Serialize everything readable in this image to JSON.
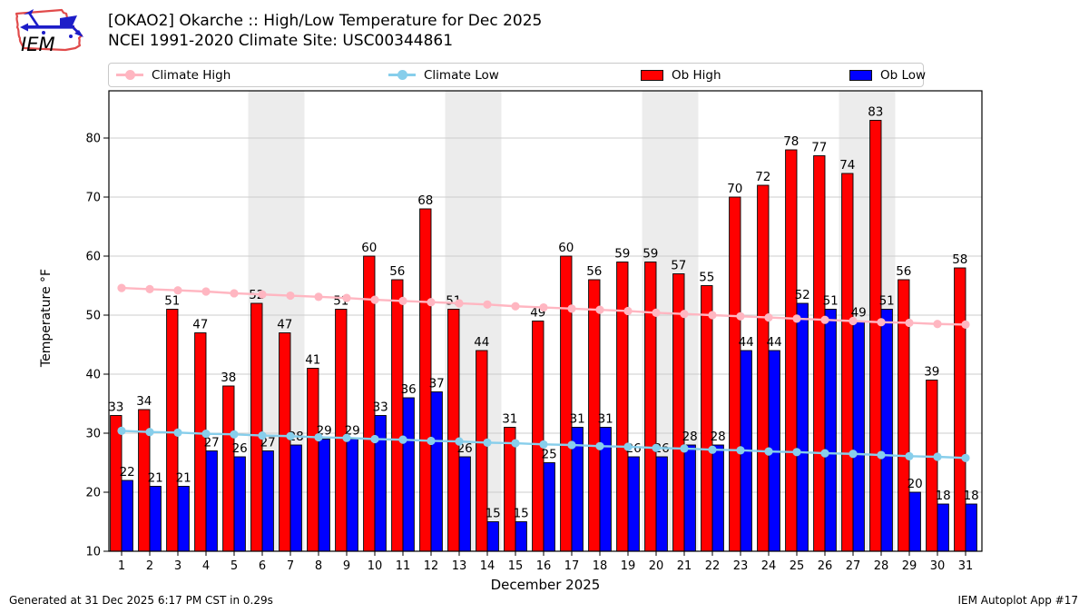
{
  "header": {
    "logo_text": "IEM",
    "title_line1": "[OKAO2] Okarche :: High/Low Temperature for Dec 2025",
    "title_line2": "NCEI 1991-2020 Climate Site: USC00344861"
  },
  "legend": {
    "items": [
      {
        "label": "Climate High",
        "type": "line",
        "color": "#ffb6c1"
      },
      {
        "label": "Climate Low",
        "type": "line",
        "color": "#87ceeb"
      },
      {
        "label": "Ob High",
        "type": "patch",
        "color": "#ff0000"
      },
      {
        "label": "Ob Low",
        "type": "patch",
        "color": "#0000ff"
      }
    ]
  },
  "chart_data": {
    "type": "bar",
    "title": "[OKAO2] Okarche :: High/Low Temperature for Dec 2025",
    "subtitle": "NCEI 1991-2020 Climate Site: USC00344861",
    "xlabel": "December 2025",
    "ylabel": "Temperature °F",
    "x": [
      1,
      2,
      3,
      4,
      5,
      6,
      7,
      8,
      9,
      10,
      11,
      12,
      13,
      14,
      15,
      16,
      17,
      18,
      19,
      20,
      21,
      22,
      23,
      24,
      25,
      26,
      27,
      28,
      29,
      30,
      31
    ],
    "yticks": [
      10,
      20,
      30,
      40,
      50,
      60,
      70,
      80
    ],
    "ylim": [
      10,
      88
    ],
    "grid": "horizontal",
    "legend_position": "top",
    "weekend_bands": [
      [
        5.5,
        7.5
      ],
      [
        12.5,
        14.5
      ],
      [
        19.5,
        21.5
      ],
      [
        26.5,
        28.5
      ]
    ],
    "style": {
      "band": "#ececec",
      "gridline": "#cccccc"
    },
    "series": [
      {
        "name": "Climate High",
        "type": "line",
        "color": "#ffb6c1",
        "values": [
          54.6,
          54.4,
          54.2,
          54.0,
          53.7,
          53.5,
          53.3,
          53.1,
          52.9,
          52.6,
          52.4,
          52.2,
          52.0,
          51.8,
          51.5,
          51.3,
          51.1,
          50.9,
          50.7,
          50.4,
          50.2,
          50.0,
          49.8,
          49.6,
          49.4,
          49.2,
          49.0,
          48.8,
          48.7,
          48.5,
          48.4
        ]
      },
      {
        "name": "Climate Low",
        "type": "line",
        "color": "#87ceeb",
        "values": [
          30.4,
          30.2,
          30.1,
          29.9,
          29.8,
          29.6,
          29.5,
          29.3,
          29.2,
          29.0,
          28.9,
          28.7,
          28.6,
          28.4,
          28.3,
          28.1,
          28.0,
          27.8,
          27.7,
          27.5,
          27.4,
          27.2,
          27.1,
          26.9,
          26.8,
          26.6,
          26.5,
          26.3,
          26.1,
          26.0,
          25.8
        ]
      },
      {
        "name": "Ob High",
        "type": "bar",
        "color": "#ff0000",
        "values": [
          33,
          34,
          51,
          47,
          38,
          52,
          47,
          41,
          51,
          60,
          56,
          68,
          51,
          44,
          31,
          49,
          60,
          56,
          59,
          59,
          57,
          55,
          70,
          72,
          78,
          77,
          74,
          83,
          56,
          39,
          58
        ]
      },
      {
        "name": "Ob Low",
        "type": "bar",
        "color": "#0000ff",
        "values": [
          22,
          21,
          21,
          27,
          26,
          27,
          28,
          29,
          29,
          33,
          36,
          37,
          26,
          15,
          15,
          25,
          31,
          31,
          26,
          26,
          28,
          28,
          44,
          44,
          52,
          51,
          49,
          51,
          20,
          18,
          18
        ]
      }
    ]
  },
  "footer": {
    "left": "Generated at 31 Dec 2025 6:17 PM CST in 0.29s",
    "right": "IEM Autoplot App #17"
  }
}
